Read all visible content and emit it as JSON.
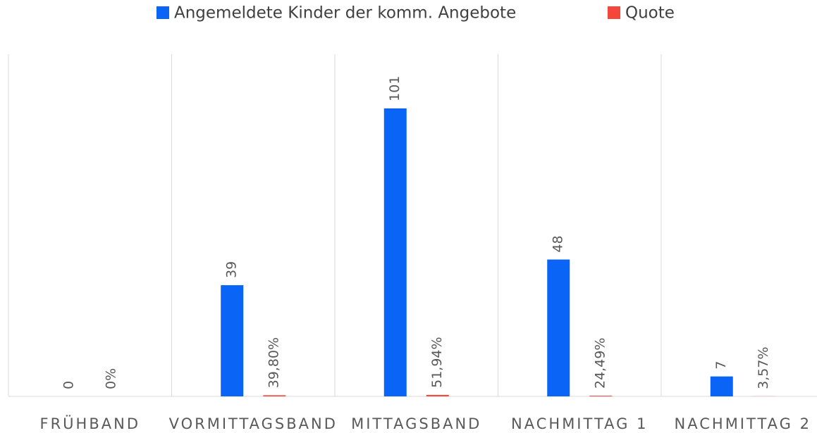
{
  "chart_data": {
    "type": "bar",
    "categories": [
      "FRÜHBAND",
      "VORMITTAGSBAND",
      "MITTAGSBAND",
      "NACHMITTAG 1",
      "NACHMITTAG 2"
    ],
    "series": [
      {
        "name": "Angemeldete Kinder der komm. Angebote",
        "color": "#0a64f5",
        "values": [
          0,
          39,
          101,
          48,
          7
        ]
      },
      {
        "name": "Quote",
        "color": "#f4473a",
        "values": [
          0,
          0.398,
          0.5194,
          0.2449,
          0.0357
        ],
        "value_labels": [
          "0%",
          "39,80%",
          "51,94%",
          "24,49%",
          "3,57%"
        ]
      }
    ],
    "ylim": [
      0,
      120
    ],
    "legend": "top"
  }
}
